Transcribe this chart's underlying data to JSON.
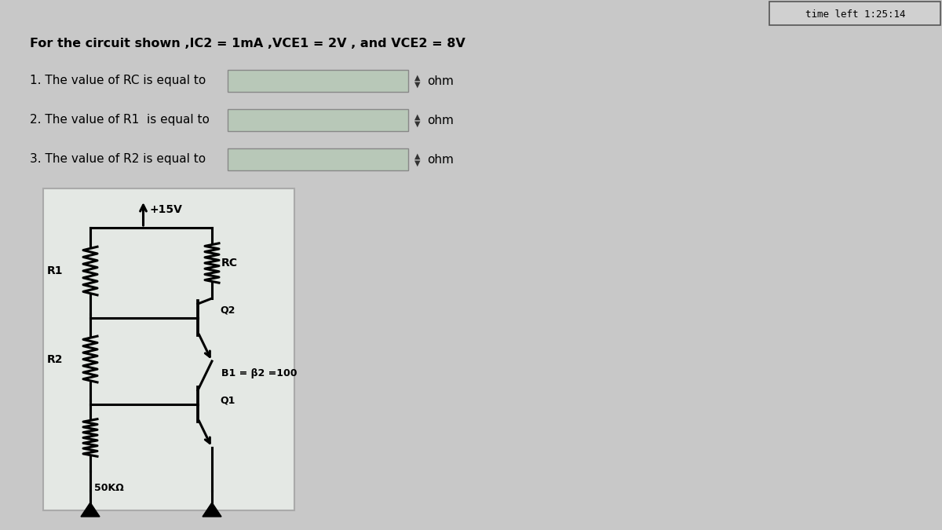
{
  "bg_color": "#c8c8c8",
  "panel_color": "#d8d8d8",
  "text_color": "#000000",
  "title_text": "For the circuit shown ,IC2 = 1mA ,VCE1 = 2V , and VCE2 = 8V",
  "q1_text": "1. The value of RC is equal to",
  "q2_text": "2. The value of R1  is equal to",
  "q3_text": "3. The value of R2 is equal to",
  "ohm_text": "ohm",
  "timer_text": "time left 1:25:14",
  "vcc_label": "+15V",
  "rc_label": "RC",
  "r1_label": "R1",
  "r2_label": "R2",
  "q1_label": "Q1",
  "q2_label": "Q2",
  "beta_label": "B1 = β2 =100",
  "r50k_label": "50KΩ",
  "line_color": "#000000",
  "input_box_color": "#b8c8b8",
  "input_box_edge": "#888888",
  "circuit_bg": "#e4e8e4",
  "circuit_border": "#aaaaaa"
}
